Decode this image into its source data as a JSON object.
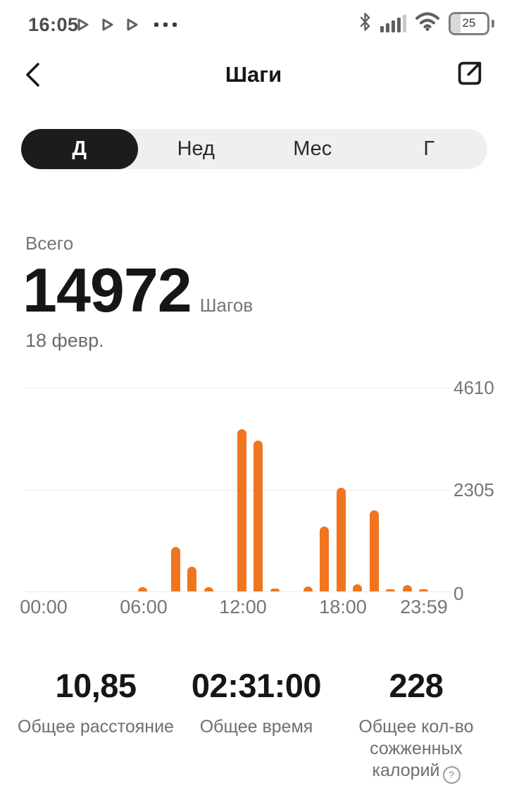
{
  "status_bar": {
    "time": "16:05",
    "battery_percent": "25",
    "left_icons": [
      "play-notification",
      "play-notification",
      "play-notification",
      "more-dots"
    ],
    "right_icons": [
      "bluetooth-icon",
      "signal-icon",
      "wifi-icon",
      "battery-icon"
    ]
  },
  "header": {
    "title": "Шаги",
    "back_icon": "chevron-left-icon",
    "share_icon": "share-icon"
  },
  "tabs": [
    {
      "label": "Д",
      "selected": true
    },
    {
      "label": "Нед",
      "selected": false
    },
    {
      "label": "Мес",
      "selected": false
    },
    {
      "label": "Г",
      "selected": false
    }
  ],
  "summary": {
    "label": "Всего",
    "steps": "14972",
    "unit": "Шагов",
    "date": "18 февр."
  },
  "chart_data": {
    "type": "bar",
    "title": "",
    "xlabel": "",
    "ylabel": "",
    "x_unit": "hour_of_day",
    "x": [
      0,
      1,
      2,
      3,
      4,
      5,
      6,
      7,
      8,
      9,
      10,
      11,
      12,
      13,
      14,
      15,
      16,
      17,
      18,
      19,
      20,
      21,
      22,
      23
    ],
    "values": [
      0,
      0,
      0,
      0,
      0,
      0,
      100,
      0,
      1000,
      550,
      100,
      0,
      3650,
      3400,
      60,
      0,
      110,
      1460,
      2330,
      160,
      1830,
      40,
      150,
      32
    ],
    "total": 14972,
    "x_tick_labels": [
      "00:00",
      "06:00",
      "12:00",
      "18:00",
      "23:59"
    ],
    "y_ticks": [
      0,
      2305,
      4610
    ],
    "y_tick_labels": [
      "4610",
      "2305",
      "0"
    ],
    "ylim": [
      0,
      4610
    ],
    "bar_color": "#EF751F",
    "grid": "horizontal",
    "legend": "none"
  },
  "stats": {
    "distance": {
      "value": "10,85",
      "label": "Общее расстояние"
    },
    "time": {
      "value": "02:31:00",
      "label": "Общее время"
    },
    "calories": {
      "value": "228",
      "label": "Общее кол-во сожженных калорий",
      "info": "?"
    }
  },
  "colors": {
    "accent": "#EF751F",
    "tab_selected_bg": "#1C1C1E",
    "tab_bar_bg": "#EFEFF1",
    "gridline": "#ECECEC",
    "muted_text": "#757575"
  }
}
